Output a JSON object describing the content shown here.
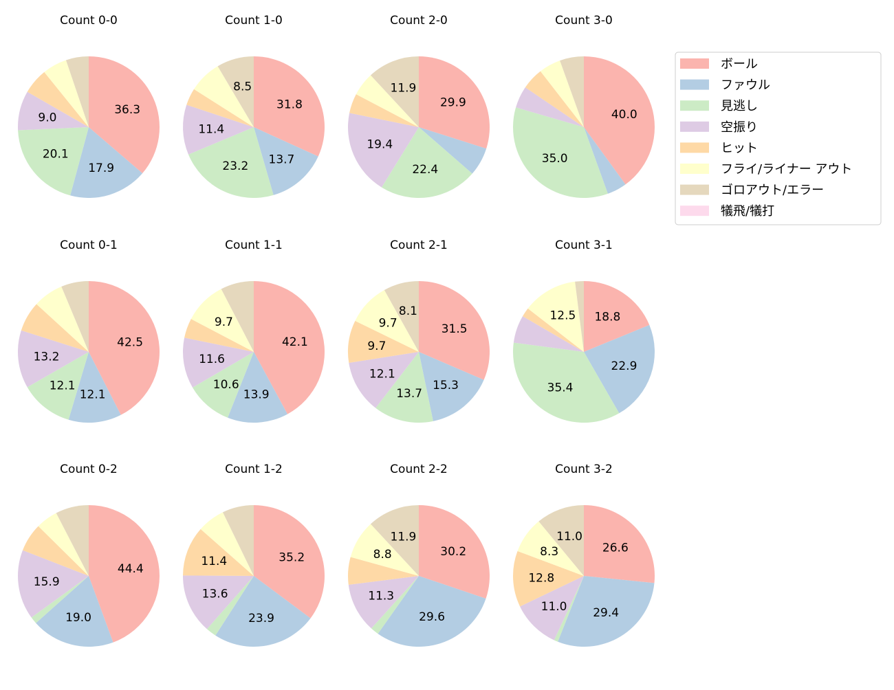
{
  "chart_data": {
    "type": "pie",
    "start_angle": "top",
    "direction": "clockwise",
    "label_format": "one decimal, shown on larger slices",
    "categories": [
      "ボール",
      "ファウル",
      "見逃し",
      "空振り",
      "ヒット",
      "フライ/ライナー アウト",
      "ゴロアウト/エラー",
      "犠飛/犠打"
    ],
    "colors": [
      "#fbb4ae",
      "#b3cde3",
      "#ccebc5",
      "#decbe4",
      "#fed9a6",
      "#ffffcc",
      "#e5d8bd",
      "#fddaec"
    ],
    "legend_placement": "upper-right",
    "charts": [
      {
        "title": "Count 0-0",
        "values": [
          36.3,
          17.9,
          20.1,
          9.0,
          5.9,
          5.6,
          5.2,
          0
        ]
      },
      {
        "title": "Count 1-0",
        "values": [
          31.8,
          13.7,
          23.2,
          11.4,
          3.9,
          7.5,
          8.5,
          0
        ]
      },
      {
        "title": "Count 2-0",
        "values": [
          29.9,
          6.5,
          22.4,
          19.4,
          4.5,
          5.4,
          11.9,
          0
        ]
      },
      {
        "title": "Count 3-0",
        "values": [
          40.0,
          4.5,
          35.0,
          5.0,
          5.0,
          5.0,
          5.5,
          0
        ]
      },
      {
        "title": "Count 0-1",
        "values": [
          42.5,
          12.1,
          12.1,
          13.2,
          6.9,
          6.9,
          6.3,
          0
        ]
      },
      {
        "title": "Count 1-1",
        "values": [
          42.1,
          13.9,
          10.6,
          11.6,
          4.5,
          9.7,
          7.6,
          0
        ]
      },
      {
        "title": "Count 2-1",
        "values": [
          31.5,
          15.3,
          13.7,
          12.1,
          9.7,
          9.7,
          8.1,
          0
        ]
      },
      {
        "title": "Count 3-1",
        "values": [
          18.8,
          22.9,
          35.4,
          6.3,
          2.1,
          12.5,
          2.0,
          0
        ]
      },
      {
        "title": "Count 0-2",
        "values": [
          44.4,
          19.0,
          1.6,
          15.9,
          6.5,
          5.0,
          7.6,
          0
        ]
      },
      {
        "title": "Count 1-2",
        "values": [
          35.2,
          23.9,
          2.4,
          13.6,
          11.4,
          6.3,
          7.2,
          0
        ]
      },
      {
        "title": "Count 2-2",
        "values": [
          30.2,
          29.6,
          1.9,
          11.3,
          6.3,
          8.8,
          11.9,
          0
        ]
      },
      {
        "title": "Count 3-2",
        "values": [
          26.6,
          29.4,
          0.9,
          11.0,
          12.8,
          8.3,
          11.0,
          0
        ]
      }
    ]
  }
}
